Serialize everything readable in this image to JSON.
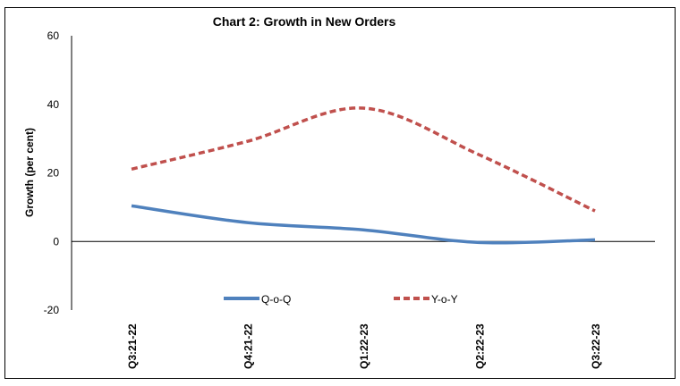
{
  "chart_data": {
    "type": "line",
    "title": "Chart 2: Growth in New Orders",
    "xlabel": "",
    "ylabel": "Growth (per cent)",
    "categories": [
      "Q3:21-22",
      "Q4:21-22",
      "Q1:22-23",
      "Q2:22-23",
      "Q3:22-23"
    ],
    "ylim": [
      -20,
      60
    ],
    "yticks": [
      -20,
      0,
      20,
      40,
      60
    ],
    "grid": false,
    "legend": "bottom-center",
    "series": [
      {
        "name": "Q-o-Q",
        "values": [
          10.4,
          5.5,
          3.4,
          -0.3,
          0.5
        ],
        "color": "#4F81BD",
        "style": "solid"
      },
      {
        "name": "Y-o-Y",
        "values": [
          21.1,
          29.2,
          38.9,
          25.3,
          8.9
        ],
        "color": "#C0504D",
        "style": "dashed"
      }
    ]
  }
}
